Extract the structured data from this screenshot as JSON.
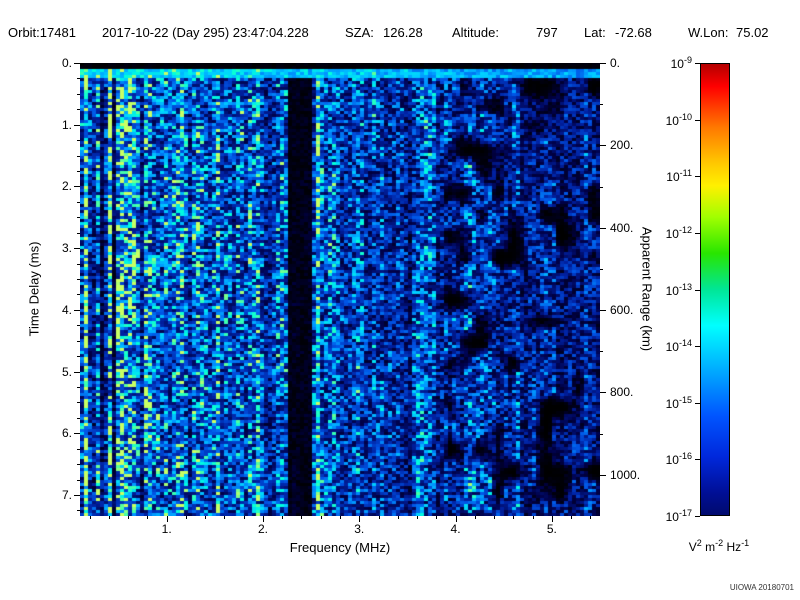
{
  "header": {
    "orbit": "Orbit:17481",
    "datetime": "2017-10-22 (Day 295) 23:47:04.228",
    "sza_label": "SZA:",
    "sza_value": "126.28",
    "altitude_label": "Altitude:",
    "altitude_value": "797",
    "lat_label": "Lat:",
    "lat_value": "-72.68",
    "wlon_label": "W.Lon:",
    "wlon_value": "75.02"
  },
  "chart_data": {
    "type": "heatmap",
    "xlabel": "Frequency (MHz)",
    "ylabel_left": "Time Delay (ms)",
    "ylabel_right": "Apparent Range (km)",
    "x_range_mhz": [
      0.1,
      5.5
    ],
    "x_minor_step_mhz": 0.2,
    "x_ticks": [
      {
        "value": 1,
        "label": "1."
      },
      {
        "value": 2,
        "label": "2."
      },
      {
        "value": 3,
        "label": "3."
      },
      {
        "value": 4,
        "label": "4."
      },
      {
        "value": 5,
        "label": "5."
      }
    ],
    "y_left_range_ms": [
      0,
      7.34
    ],
    "y_left_minor_step_ms": 0.25,
    "y_left_ticks": [
      {
        "value": 0,
        "label": "0."
      },
      {
        "value": 1,
        "label": "1."
      },
      {
        "value": 2,
        "label": "2."
      },
      {
        "value": 3,
        "label": "3."
      },
      {
        "value": 4,
        "label": "4."
      },
      {
        "value": 5,
        "label": "5."
      },
      {
        "value": 6,
        "label": "6."
      },
      {
        "value": 7,
        "label": "7."
      }
    ],
    "y_right_range_km": [
      0,
      1100
    ],
    "y_right_minor_step_km": 100,
    "y_right_ticks": [
      {
        "value": 0,
        "label": "0."
      },
      {
        "value": 200,
        "label": "200."
      },
      {
        "value": 400,
        "label": "400."
      },
      {
        "value": 600,
        "label": "600."
      },
      {
        "value": 800,
        "label": "800."
      },
      {
        "value": 1000,
        "label": "1000."
      }
    ],
    "colorbar": {
      "scale": "log",
      "ticks": [
        {
          "base": "10",
          "exp": "-9"
        },
        {
          "base": "10",
          "exp": "-10"
        },
        {
          "base": "10",
          "exp": "-11"
        },
        {
          "base": "10",
          "exp": "-12"
        },
        {
          "base": "10",
          "exp": "-13"
        },
        {
          "base": "10",
          "exp": "-14"
        },
        {
          "base": "10",
          "exp": "-15"
        },
        {
          "base": "10",
          "exp": "-16"
        },
        {
          "base": "10",
          "exp": "-17"
        }
      ],
      "unit_parts": [
        {
          "base": "V",
          "exp": "2"
        },
        {
          "base": "m",
          "exp": "-2"
        },
        {
          "base": "Hz",
          "exp": "-1"
        }
      ],
      "gradient_stops": [
        "#b40000 0%",
        "#ff0000 5%",
        "#ff7800 14%",
        "#ffc800 22%",
        "#fff000 27%",
        "#a0ff00 34%",
        "#28e600 42%",
        "#00e696 50%",
        "#00ffff 58%",
        "#00aaff 68%",
        "#0055ff 78%",
        "#0028dc 87%",
        "#000f96 95%",
        "#000a6e 100%"
      ]
    },
    "intensity_structure": {
      "description": "Ionospheric radar sounder spectrogram: mostly blue noise around 1e-16 to 1e-15, bright cyan vertical striping below ~0.8 MHz, black vertical band near 2.3-2.5 MHz, bright echo line near zero time delay, increasingly dark patchy signal above ~3.9 MHz.",
      "top_black_band_ms": [
        0,
        0.1
      ],
      "surface_echo_line_ms": [
        0.1,
        0.26
      ],
      "bright_low_freq_mhz": [
        0.1,
        0.8
      ],
      "dark_band_mhz": [
        2.28,
        2.52
      ],
      "dark_lines_mhz": [
        0.34,
        0.46
      ],
      "bright_lines_mhz": [
        0.16,
        2.58
      ],
      "patchy_dark_above_mhz": 3.9,
      "spectrogram_colormap_stops": [
        [
          0.0,
          "#000000"
        ],
        [
          0.08,
          "#000046"
        ],
        [
          0.22,
          "#0020a0"
        ],
        [
          0.4,
          "#0055e6"
        ],
        [
          0.55,
          "#0096ff"
        ],
        [
          0.68,
          "#00d2ff"
        ],
        [
          0.8,
          "#00ffdc"
        ],
        [
          0.9,
          "#50ffa0"
        ],
        [
          1.0,
          "#c8ff64"
        ]
      ]
    }
  },
  "footer": {
    "credit": "UIOWA 20180701"
  }
}
